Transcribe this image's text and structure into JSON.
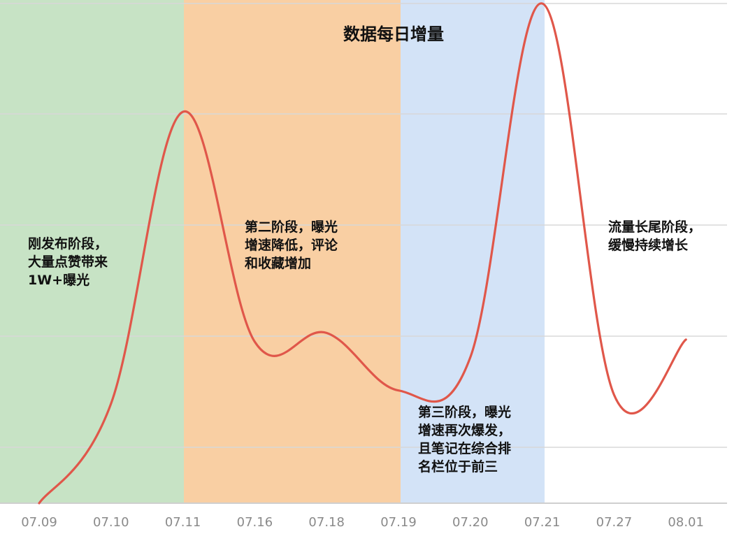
{
  "chart_data": {
    "type": "line",
    "title": "数据每日增量",
    "xlabel": "",
    "ylabel": "",
    "categories": [
      "07.09",
      "07.10",
      "07.11",
      "07.16",
      "07.18",
      "07.19",
      "07.20",
      "07.21",
      "07.27",
      "08.01"
    ],
    "series": [
      {
        "values": [
          0,
          45,
          177,
          73,
          77,
          51,
          66,
          226,
          49,
          74
        ],
        "color": "#e0574a"
      }
    ],
    "ylim": [
      0,
      226
    ],
    "grid": true,
    "legend": "none",
    "phases": [
      {
        "from": "07.09",
        "to": "07.11",
        "color": "#c7e3c5",
        "label": [
          "刚发布阶段，",
          "大量点赞带来",
          "1W+曝光"
        ]
      },
      {
        "from": "07.11",
        "to": "07.19",
        "color": "#f9cfa3",
        "label": [
          "第二阶段，曝光",
          "增速降低，评论",
          "和收藏增加"
        ]
      },
      {
        "from": "07.19",
        "to": "07.21",
        "color": "#d3e3f7",
        "label": [
          "第三阶段，曝光",
          "增速再次爆发，",
          "且笔记在综合排",
          "名栏位于前三"
        ]
      },
      {
        "from": "07.21",
        "to": "08.01",
        "color": "#ffffff",
        "label": [
          "流量长尾阶段，",
          "缓慢持续增长"
        ]
      }
    ]
  }
}
